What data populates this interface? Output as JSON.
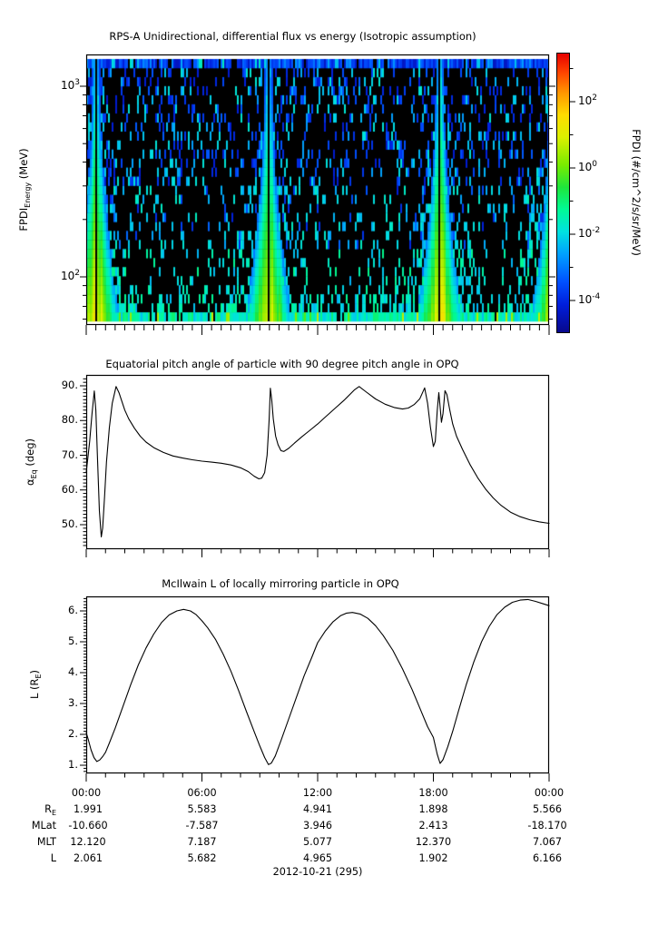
{
  "figure": {
    "background": "#ffffff",
    "date_label": "2012-10-21 (295)"
  },
  "spectrogram": {
    "title": "RPS-A Unidirectional, differential flux vs energy (Isotropic assumption)",
    "ylabel": {
      "main": "FPDI",
      "sub": "Energy",
      "unit": " (MeV)"
    },
    "ytick_labels": [
      {
        "mantissa": "10",
        "exp": "3",
        "value": 1000
      },
      {
        "mantissa": "10",
        "exp": "2",
        "value": 100
      }
    ],
    "colorbar": {
      "label": "FPDI (#/cm^2/s/sr/MeV)",
      "tick_labels": [
        {
          "mantissa": "10",
          "exp": "2",
          "value": 100
        },
        {
          "mantissa": "10",
          "exp": "0",
          "value": 1
        },
        {
          "mantissa": "10",
          "exp": "-2",
          "value": 0.01
        },
        {
          "mantissa": "10",
          "exp": "-4",
          "value": 0.0001
        }
      ]
    }
  },
  "pitch_panel": {
    "title": "Equatorial pitch angle of particle with 90 degree pitch angle in OPQ",
    "ylabel": {
      "main": "α",
      "sub": "Eq",
      "unit": " (deg)"
    },
    "ytick_labels": [
      "90.",
      "80.",
      "70.",
      "60.",
      "50."
    ],
    "ytick_values": [
      90,
      80,
      70,
      60,
      50
    ]
  },
  "l_panel": {
    "title": "McIlwain L of locally mirroring particle in OPQ",
    "ylabel": {
      "main": "L (R",
      "sub": "E",
      "unit": ")"
    },
    "ytick_labels": [
      "6.",
      "5.",
      "4.",
      "3.",
      "2.",
      "1."
    ],
    "ytick_values": [
      6,
      5,
      4,
      3,
      2,
      1
    ]
  },
  "time_axis": {
    "tick_labels": [
      "00:00",
      "06:00",
      "12:00",
      "18:00",
      "00:00"
    ],
    "tick_hours": [
      0,
      6,
      12,
      18,
      24
    ],
    "minor_step_hours": 1
  },
  "ephemeris": {
    "row_labels": [
      {
        "main": "R",
        "sub": "E"
      },
      {
        "main": "MLat",
        "sub": ""
      },
      {
        "main": "MLT",
        "sub": ""
      },
      {
        "main": "L",
        "sub": ""
      }
    ],
    "rows": [
      [
        "1.991",
        "5.583",
        "4.941",
        "1.898",
        "5.566"
      ],
      [
        "-10.660",
        "-7.587",
        "3.946",
        "2.413",
        "-18.170"
      ],
      [
        "12.120",
        "7.187",
        "5.077",
        "12.370",
        "7.067"
      ],
      [
        "2.061",
        "5.682",
        "4.965",
        "1.902",
        "6.166"
      ]
    ]
  },
  "chart_data": [
    {
      "type": "heatmap",
      "title": "RPS-A Unidirectional, differential flux vs energy (Isotropic assumption)",
      "x_range_hours": [
        0,
        24
      ],
      "y_scale": "log",
      "y_range_mev": [
        58,
        1390
      ],
      "flux_log10_range": [
        -5,
        3.5
      ],
      "colorbar_tick_values": [
        100,
        1,
        0.01,
        0.0001
      ],
      "perigee_enhancement_centers_hours": [
        0.52,
        9.45,
        18.33,
        24.25
      ],
      "data_gap_half_width_hours": 0.07,
      "note": "Black = below threshold / no counts; blue-cyan speckle background; bright yellow-green funnel-shaped flux enhancements at low energy around each perigee pass; solid blue noise band in the highest-energy bin; vertical black data-gap line at each perigee.",
      "colormap_stops": [
        [
          0.0,
          "#08088c"
        ],
        [
          0.1,
          "#001edc"
        ],
        [
          0.18,
          "#0050ff"
        ],
        [
          0.28,
          "#00a0ff"
        ],
        [
          0.36,
          "#00e1e1"
        ],
        [
          0.44,
          "#00fa96"
        ],
        [
          0.52,
          "#1ee63c"
        ],
        [
          0.6,
          "#78eb00"
        ],
        [
          0.7,
          "#dcf000"
        ],
        [
          0.78,
          "#ffdc00"
        ],
        [
          0.86,
          "#ff9600"
        ],
        [
          0.93,
          "#ff4600"
        ],
        [
          1.0,
          "#e60000"
        ]
      ],
      "funnel": {
        "gap_hw": 0.07,
        "hw_base": 0.2,
        "hw_scale": 1.0,
        "hw_pow": 2.0,
        "peak0": 0.73,
        "peak_slope": 0.38,
        "edge_fall": 0.62,
        "edge_pow": 1.25,
        "last_scale": 0.95
      },
      "speckle": {
        "seed": 20121021,
        "cols": 255,
        "rows": 29,
        "p_high": 0.2,
        "p_mid": 0.15,
        "p_low": 0.12,
        "p_bottom": [
          0.85,
          0.35,
          0.25
        ],
        "near_funnel_boost": 0.2,
        "top_band_fill": 0.88
      }
    },
    {
      "type": "line",
      "title": "Equatorial pitch angle of particle with 90 degree pitch angle in OPQ",
      "xlabel": "",
      "ylabel": "alpha_Eq (deg)",
      "ylim": [
        43.0,
        93.2
      ],
      "yticks": [
        50,
        60,
        70,
        80,
        90
      ],
      "xlim_hours": [
        0,
        24
      ],
      "points": [
        [
          0.0,
          65
        ],
        [
          0.08,
          69
        ],
        [
          0.18,
          74
        ],
        [
          0.3,
          82
        ],
        [
          0.42,
          88.5
        ],
        [
          0.5,
          83
        ],
        [
          0.58,
          70
        ],
        [
          0.68,
          54
        ],
        [
          0.78,
          46.5
        ],
        [
          0.85,
          49
        ],
        [
          0.95,
          58
        ],
        [
          1.05,
          68
        ],
        [
          1.2,
          78
        ],
        [
          1.35,
          85
        ],
        [
          1.55,
          89.8
        ],
        [
          1.7,
          88
        ],
        [
          1.85,
          85.5
        ],
        [
          2.0,
          83
        ],
        [
          2.2,
          80.5
        ],
        [
          2.5,
          77.8
        ],
        [
          2.8,
          75.5
        ],
        [
          3.1,
          73.8
        ],
        [
          3.5,
          72.2
        ],
        [
          4.0,
          70.8
        ],
        [
          4.5,
          69.8
        ],
        [
          5.0,
          69.2
        ],
        [
          5.5,
          68.7
        ],
        [
          6.0,
          68.3
        ],
        [
          6.5,
          68.0
        ],
        [
          7.0,
          67.7
        ],
        [
          7.5,
          67.2
        ],
        [
          8.0,
          66.4
        ],
        [
          8.4,
          65.3
        ],
        [
          8.7,
          64.0
        ],
        [
          8.95,
          63.2
        ],
        [
          9.1,
          63.4
        ],
        [
          9.25,
          65.0
        ],
        [
          9.38,
          70.0
        ],
        [
          9.48,
          80.0
        ],
        [
          9.55,
          89.3
        ],
        [
          9.62,
          86.0
        ],
        [
          9.7,
          80.5
        ],
        [
          9.82,
          75.5
        ],
        [
          9.95,
          73.0
        ],
        [
          10.1,
          71.3
        ],
        [
          10.25,
          71.1
        ],
        [
          10.5,
          72.0
        ],
        [
          10.8,
          73.5
        ],
        [
          11.2,
          75.4
        ],
        [
          11.6,
          77.2
        ],
        [
          12.0,
          79.0
        ],
        [
          12.4,
          81.0
        ],
        [
          12.9,
          83.5
        ],
        [
          13.4,
          86.0
        ],
        [
          13.9,
          88.8
        ],
        [
          14.15,
          89.8
        ],
        [
          14.5,
          88.3
        ],
        [
          15.0,
          86.2
        ],
        [
          15.5,
          84.7
        ],
        [
          16.0,
          83.7
        ],
        [
          16.4,
          83.3
        ],
        [
          16.7,
          83.6
        ],
        [
          17.0,
          84.6
        ],
        [
          17.3,
          86.3
        ],
        [
          17.55,
          89.4
        ],
        [
          17.7,
          85.0
        ],
        [
          17.85,
          78.0
        ],
        [
          18.0,
          72.5
        ],
        [
          18.1,
          74.0
        ],
        [
          18.2,
          83.0
        ],
        [
          18.28,
          88.0
        ],
        [
          18.35,
          84.0
        ],
        [
          18.42,
          79.5
        ],
        [
          18.5,
          82.0
        ],
        [
          18.6,
          88.6
        ],
        [
          18.7,
          87.5
        ],
        [
          18.85,
          83.0
        ],
        [
          19.0,
          79.0
        ],
        [
          19.2,
          75.5
        ],
        [
          19.5,
          71.8
        ],
        [
          19.9,
          67.3
        ],
        [
          20.3,
          63.5
        ],
        [
          20.7,
          60.3
        ],
        [
          21.1,
          57.7
        ],
        [
          21.5,
          55.6
        ],
        [
          22.0,
          53.6
        ],
        [
          22.5,
          52.3
        ],
        [
          23.0,
          51.4
        ],
        [
          23.5,
          50.8
        ],
        [
          24.0,
          50.4
        ]
      ]
    },
    {
      "type": "line",
      "title": "McIlwain L of locally mirroring particle in OPQ",
      "xlabel": "",
      "ylabel": "L (R_E)",
      "ylim": [
        0.74,
        6.47
      ],
      "yticks": [
        1,
        2,
        3,
        4,
        5,
        6
      ],
      "xlim_hours": [
        0,
        24
      ],
      "points": [
        [
          0.0,
          2.06
        ],
        [
          0.1,
          1.85
        ],
        [
          0.25,
          1.5
        ],
        [
          0.4,
          1.25
        ],
        [
          0.55,
          1.12
        ],
        [
          0.7,
          1.17
        ],
        [
          0.85,
          1.28
        ],
        [
          1.0,
          1.42
        ],
        [
          1.2,
          1.72
        ],
        [
          1.5,
          2.2
        ],
        [
          1.9,
          2.9
        ],
        [
          2.3,
          3.6
        ],
        [
          2.7,
          4.25
        ],
        [
          3.1,
          4.8
        ],
        [
          3.5,
          5.25
        ],
        [
          3.9,
          5.62
        ],
        [
          4.3,
          5.87
        ],
        [
          4.7,
          6.0
        ],
        [
          5.05,
          6.05
        ],
        [
          5.4,
          6.0
        ],
        [
          5.7,
          5.88
        ],
        [
          6.0,
          5.68
        ],
        [
          6.3,
          5.45
        ],
        [
          6.7,
          5.08
        ],
        [
          7.1,
          4.6
        ],
        [
          7.5,
          4.05
        ],
        [
          7.9,
          3.42
        ],
        [
          8.3,
          2.75
        ],
        [
          8.7,
          2.1
        ],
        [
          9.0,
          1.62
        ],
        [
          9.25,
          1.25
        ],
        [
          9.45,
          1.02
        ],
        [
          9.6,
          1.07
        ],
        [
          9.8,
          1.3
        ],
        [
          10.1,
          1.8
        ],
        [
          10.5,
          2.5
        ],
        [
          10.9,
          3.2
        ],
        [
          11.3,
          3.9
        ],
        [
          11.7,
          4.5
        ],
        [
          12.0,
          4.97
        ],
        [
          12.4,
          5.35
        ],
        [
          12.8,
          5.65
        ],
        [
          13.2,
          5.85
        ],
        [
          13.5,
          5.93
        ],
        [
          13.8,
          5.95
        ],
        [
          14.2,
          5.9
        ],
        [
          14.6,
          5.76
        ],
        [
          15.0,
          5.52
        ],
        [
          15.4,
          5.2
        ],
        [
          15.9,
          4.72
        ],
        [
          16.4,
          4.12
        ],
        [
          16.9,
          3.45
        ],
        [
          17.3,
          2.85
        ],
        [
          17.7,
          2.25
        ],
        [
          18.0,
          1.9
        ],
        [
          18.2,
          1.35
        ],
        [
          18.35,
          1.06
        ],
        [
          18.5,
          1.18
        ],
        [
          18.75,
          1.6
        ],
        [
          19.0,
          2.1
        ],
        [
          19.3,
          2.75
        ],
        [
          19.7,
          3.6
        ],
        [
          20.1,
          4.35
        ],
        [
          20.5,
          5.0
        ],
        [
          20.9,
          5.5
        ],
        [
          21.3,
          5.88
        ],
        [
          21.7,
          6.12
        ],
        [
          22.1,
          6.28
        ],
        [
          22.5,
          6.35
        ],
        [
          22.9,
          6.37
        ],
        [
          23.3,
          6.31
        ],
        [
          23.7,
          6.23
        ],
        [
          24.0,
          6.17
        ]
      ]
    }
  ]
}
